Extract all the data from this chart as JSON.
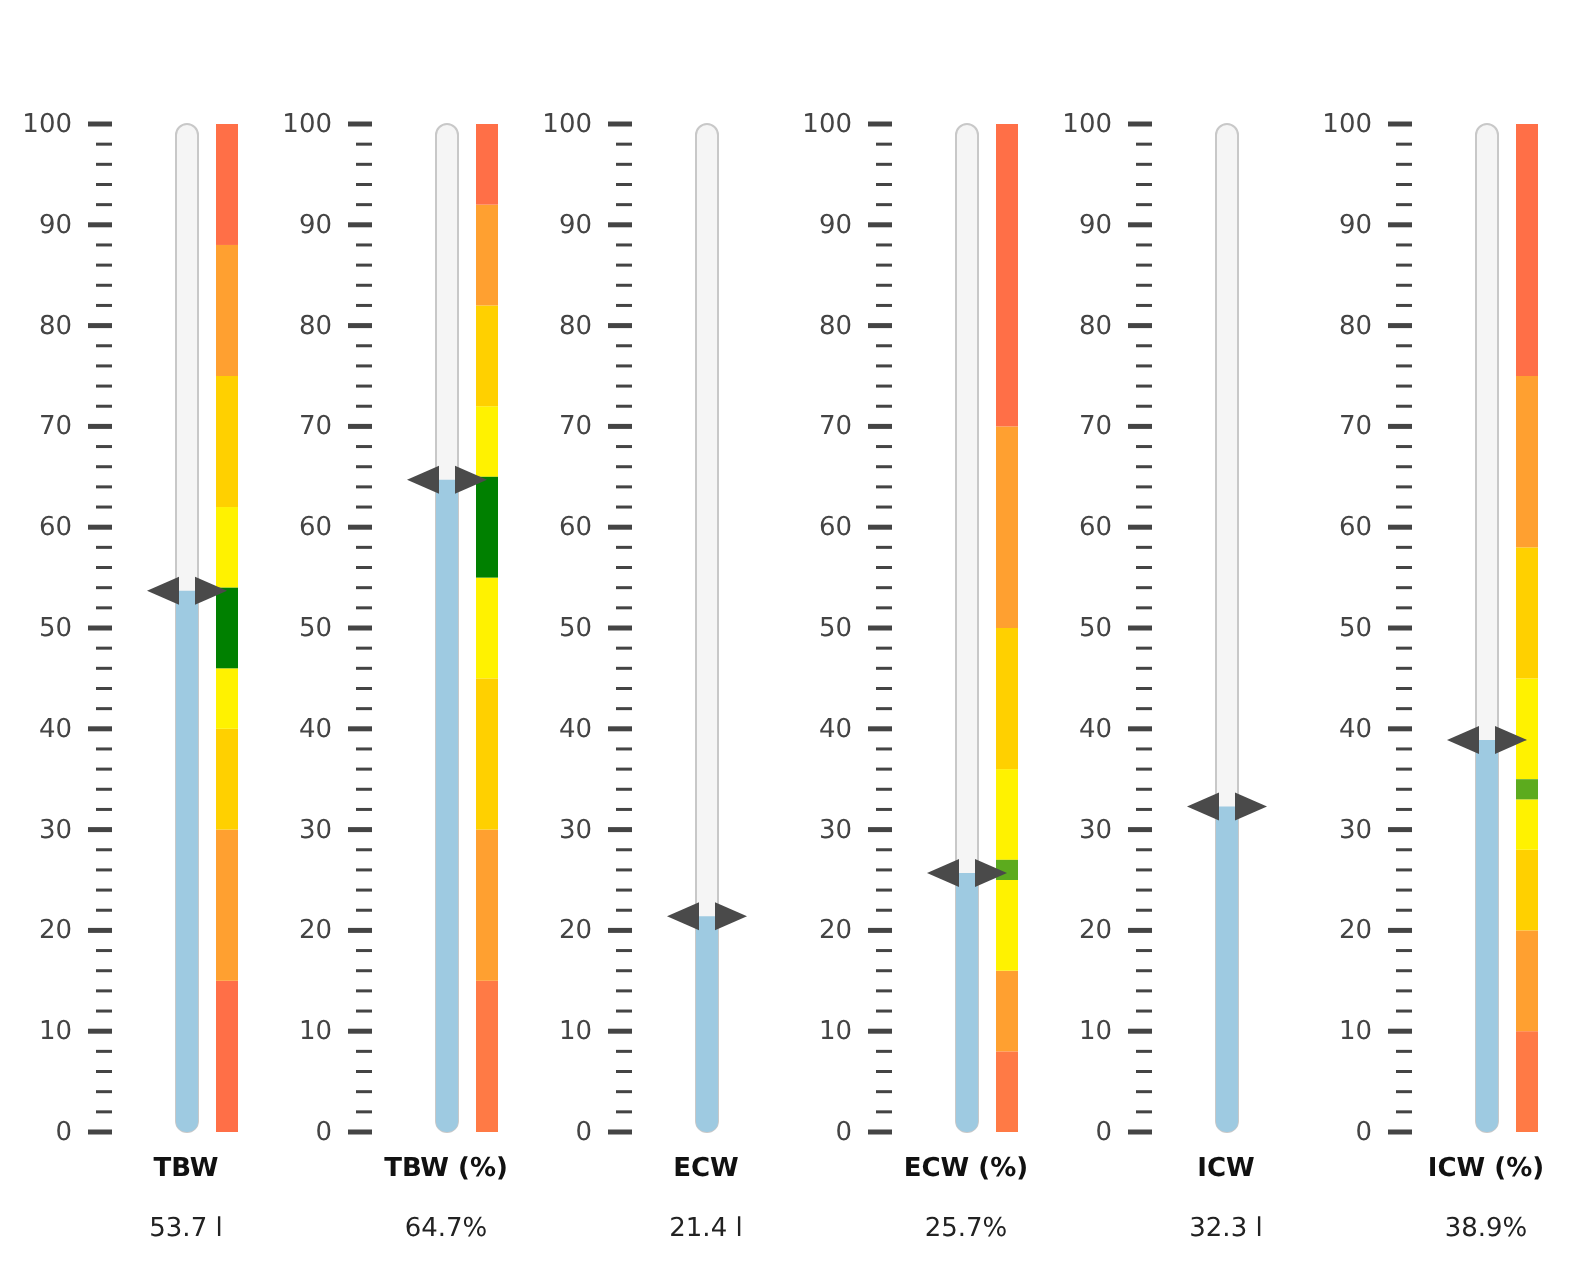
{
  "chart_data": [
    {
      "type": "bar",
      "categories": [
        "TBW"
      ],
      "values": [
        53.7
      ],
      "value_labels": [
        "53.7 l"
      ],
      "color": "#9ecae1",
      "ylim": [
        0,
        100
      ],
      "yticks": [
        0,
        {
          "value": 2,
          "label": null
        },
        {
          "value": 4,
          "label": null
        },
        {
          "value": 6,
          "label": null
        },
        {
          "value": 8,
          "label": null
        },
        10,
        {
          "value": 12,
          "label": null
        },
        {
          "value": 14,
          "label": null
        },
        {
          "value": 16,
          "label": null
        },
        {
          "value": 18,
          "label": null
        },
        20,
        {
          "value": 22,
          "label": null
        },
        {
          "value": 24,
          "label": null
        },
        {
          "value": 26,
          "label": null
        },
        {
          "value": 28,
          "label": null
        },
        30,
        {
          "value": 32,
          "label": null
        },
        {
          "value": 34,
          "label": null
        },
        {
          "value": 36,
          "label": null
        },
        {
          "value": 38,
          "label": null
        },
        40,
        {
          "value": 42,
          "label": null
        },
        {
          "value": 44,
          "label": null
        },
        {
          "value": 46,
          "label": null
        },
        {
          "value": 48,
          "label": null
        },
        50,
        {
          "value": 52,
          "label": null
        },
        {
          "value": 54,
          "label": null
        },
        {
          "value": 56,
          "label": null
        },
        {
          "value": 58,
          "label": null
        },
        60,
        {
          "value": 62,
          "label": null
        },
        {
          "value": 64,
          "label": null
        },
        {
          "value": 66,
          "label": null
        },
        {
          "value": 68,
          "label": null
        },
        70,
        {
          "value": 72,
          "label": null
        },
        {
          "value": 74,
          "label": null
        },
        {
          "value": 76,
          "label": null
        },
        {
          "value": 78,
          "label": null
        },
        80,
        {
          "value": 82,
          "label": null
        },
        {
          "value": 84,
          "label": null
        },
        {
          "value": 86,
          "label": null
        },
        {
          "value": 88,
          "label": null
        },
        90,
        {
          "value": 92,
          "label": null
        },
        {
          "value": 94,
          "label": null
        },
        {
          "value": 96,
          "label": null
        },
        {
          "value": 98,
          "label": null
        },
        100
      ],
      "bands": [
        {
          "axis": "y",
          "from": 0,
          "to": 15,
          "color": "#ff6f47"
        },
        {
          "axis": "y",
          "from": 15,
          "to": 30,
          "color": "#ffa030"
        },
        {
          "axis": "y",
          "from": 30,
          "to": 40,
          "color": "#ffd000"
        },
        {
          "axis": "y",
          "from": 40,
          "to": 46,
          "color": "#fff200"
        },
        {
          "axis": "y",
          "from": 54,
          "to": 62,
          "color": "#fff200"
        },
        {
          "axis": "y",
          "from": 62,
          "to": 75,
          "color": "#ffd000"
        },
        {
          "axis": "y",
          "from": 75,
          "to": 88,
          "color": "#ffa030"
        },
        {
          "axis": "y",
          "from": 88,
          "to": 100,
          "color": "#ff6f47"
        },
        {
          "axis": "y",
          "from": 46,
          "to": 54,
          "color": "#008000"
        }
      ]
    },
    {
      "type": "bar",
      "categories": [
        "TBW (%)"
      ],
      "values": [
        64.7
      ],
      "value_labels": [
        "64.7%"
      ],
      "color": "#9ecae1",
      "ylim": [
        0,
        100
      ],
      "yticks": [
        0,
        {
          "value": 2,
          "label": null
        },
        {
          "value": 4,
          "label": null
        },
        {
          "value": 6,
          "label": null
        },
        {
          "value": 8,
          "label": null
        },
        10,
        {
          "value": 12,
          "label": null
        },
        {
          "value": 14,
          "label": null
        },
        {
          "value": 16,
          "label": null
        },
        {
          "value": 18,
          "label": null
        },
        20,
        {
          "value": 22,
          "label": null
        },
        {
          "value": 24,
          "label": null
        },
        {
          "value": 26,
          "label": null
        },
        {
          "value": 28,
          "label": null
        },
        30,
        {
          "value": 32,
          "label": null
        },
        {
          "value": 34,
          "label": null
        },
        {
          "value": 36,
          "label": null
        },
        {
          "value": 38,
          "label": null
        },
        40,
        {
          "value": 42,
          "label": null
        },
        {
          "value": 44,
          "label": null
        },
        {
          "value": 46,
          "label": null
        },
        {
          "value": 48,
          "label": null
        },
        50,
        {
          "value": 52,
          "label": null
        },
        {
          "value": 54,
          "label": null
        },
        {
          "value": 56,
          "label": null
        },
        {
          "value": 58,
          "label": null
        },
        60,
        {
          "value": 62,
          "label": null
        },
        {
          "value": 64,
          "label": null
        },
        {
          "value": 66,
          "label": null
        },
        {
          "value": 68,
          "label": null
        },
        70,
        {
          "value": 72,
          "label": null
        },
        {
          "value": 74,
          "label": null
        },
        {
          "value": 76,
          "label": null
        },
        {
          "value": 78,
          "label": null
        },
        80,
        {
          "value": 82,
          "label": null
        },
        {
          "value": 84,
          "label": null
        },
        {
          "value": 86,
          "label": null
        },
        {
          "value": 88,
          "label": null
        },
        90,
        {
          "value": 92,
          "label": null
        },
        {
          "value": 94,
          "label": null
        },
        {
          "value": 96,
          "label": null
        },
        {
          "value": 98,
          "label": null
        },
        100
      ],
      "bands": [
        {
          "axis": "y",
          "from": 0,
          "to": 15,
          "color": "#ff7a45"
        },
        {
          "axis": "y",
          "from": 15,
          "to": 30,
          "color": "#ffa030"
        },
        {
          "axis": "y",
          "from": 30,
          "to": 45,
          "color": "#ffd000"
        },
        {
          "axis": "y",
          "from": 45,
          "to": 55,
          "color": "#fff200"
        },
        {
          "axis": "y",
          "from": 65,
          "to": 72,
          "color": "#fff200"
        },
        {
          "axis": "y",
          "from": 72,
          "to": 82,
          "color": "#ffd000"
        },
        {
          "axis": "y",
          "from": 82,
          "to": 92,
          "color": "#ffa030"
        },
        {
          "axis": "y",
          "from": 92,
          "to": 100,
          "color": "#ff6f47"
        },
        {
          "axis": "y",
          "from": 55,
          "to": 65,
          "color": "#008000"
        }
      ]
    },
    {
      "type": "bar",
      "categories": [
        "ECW"
      ],
      "values": [
        21.4
      ],
      "value_labels": [
        "21.4 l"
      ],
      "color": "#9ecae1",
      "ylim": [
        0,
        100
      ],
      "yticks": [
        0,
        {
          "value": 2,
          "label": null
        },
        {
          "value": 4,
          "label": null
        },
        {
          "value": 6,
          "label": null
        },
        {
          "value": 8,
          "label": null
        },
        10,
        {
          "value": 12,
          "label": null
        },
        {
          "value": 14,
          "label": null
        },
        {
          "value": 16,
          "label": null
        },
        {
          "value": 18,
          "label": null
        },
        20,
        {
          "value": 22,
          "label": null
        },
        {
          "value": 24,
          "label": null
        },
        {
          "value": 26,
          "label": null
        },
        {
          "value": 28,
          "label": null
        },
        30,
        {
          "value": 32,
          "label": null
        },
        {
          "value": 34,
          "label": null
        },
        {
          "value": 36,
          "label": null
        },
        {
          "value": 38,
          "label": null
        },
        40,
        {
          "value": 42,
          "label": null
        },
        {
          "value": 44,
          "label": null
        },
        {
          "value": 46,
          "label": null
        },
        {
          "value": 48,
          "label": null
        },
        50,
        {
          "value": 52,
          "label": null
        },
        {
          "value": 54,
          "label": null
        },
        {
          "value": 56,
          "label": null
        },
        {
          "value": 58,
          "label": null
        },
        60,
        {
          "value": 62,
          "label": null
        },
        {
          "value": 64,
          "label": null
        },
        {
          "value": 66,
          "label": null
        },
        {
          "value": 68,
          "label": null
        },
        70,
        {
          "value": 72,
          "label": null
        },
        {
          "value": 74,
          "label": null
        },
        {
          "value": 76,
          "label": null
        },
        {
          "value": 78,
          "label": null
        },
        80,
        {
          "value": 82,
          "label": null
        },
        {
          "value": 84,
          "label": null
        },
        {
          "value": 86,
          "label": null
        },
        {
          "value": 88,
          "label": null
        },
        90,
        {
          "value": 92,
          "label": null
        },
        {
          "value": 94,
          "label": null
        },
        {
          "value": 96,
          "label": null
        },
        {
          "value": 98,
          "label": null
        },
        100
      ]
    },
    {
      "type": "bar",
      "categories": [
        "ECW (%)"
      ],
      "values": [
        25.7
      ],
      "value_labels": [
        "25.7%"
      ],
      "color": "#9ecae1",
      "ylim": [
        0,
        100
      ],
      "yticks": [
        0,
        {
          "value": 2,
          "label": null
        },
        {
          "value": 4,
          "label": null
        },
        {
          "value": 6,
          "label": null
        },
        {
          "value": 8,
          "label": null
        },
        10,
        {
          "value": 12,
          "label": null
        },
        {
          "value": 14,
          "label": null
        },
        {
          "value": 16,
          "label": null
        },
        {
          "value": 18,
          "label": null
        },
        20,
        {
          "value": 22,
          "label": null
        },
        {
          "value": 24,
          "label": null
        },
        {
          "value": 26,
          "label": null
        },
        {
          "value": 28,
          "label": null
        },
        30,
        {
          "value": 32,
          "label": null
        },
        {
          "value": 34,
          "label": null
        },
        {
          "value": 36,
          "label": null
        },
        {
          "value": 38,
          "label": null
        },
        40,
        {
          "value": 42,
          "label": null
        },
        {
          "value": 44,
          "label": null
        },
        {
          "value": 46,
          "label": null
        },
        {
          "value": 48,
          "label": null
        },
        50,
        {
          "value": 52,
          "label": null
        },
        {
          "value": 54,
          "label": null
        },
        {
          "value": 56,
          "label": null
        },
        {
          "value": 58,
          "label": null
        },
        60,
        {
          "value": 62,
          "label": null
        },
        {
          "value": 64,
          "label": null
        },
        {
          "value": 66,
          "label": null
        },
        {
          "value": 68,
          "label": null
        },
        70,
        {
          "value": 72,
          "label": null
        },
        {
          "value": 74,
          "label": null
        },
        {
          "value": 76,
          "label": null
        },
        {
          "value": 78,
          "label": null
        },
        80,
        {
          "value": 82,
          "label": null
        },
        {
          "value": 84,
          "label": null
        },
        {
          "value": 86,
          "label": null
        },
        {
          "value": 88,
          "label": null
        },
        90,
        {
          "value": 92,
          "label": null
        },
        {
          "value": 94,
          "label": null
        },
        {
          "value": 96,
          "label": null
        },
        {
          "value": 98,
          "label": null
        },
        100
      ],
      "bands": [
        {
          "axis": "y",
          "from": 0,
          "to": 8,
          "color": "#ff7a45"
        },
        {
          "axis": "y",
          "from": 8,
          "to": 16,
          "color": "#ffa030"
        },
        {
          "axis": "y",
          "from": 16,
          "to": 25,
          "color": "#fff200"
        },
        {
          "axis": "y",
          "from": 27,
          "to": 36,
          "color": "#fff200"
        },
        {
          "axis": "y",
          "from": 36,
          "to": 50,
          "color": "#ffd000"
        },
        {
          "axis": "y",
          "from": 50,
          "to": 70,
          "color": "#ffa030"
        },
        {
          "axis": "y",
          "from": 70,
          "to": 100,
          "color": "#ff6f47"
        },
        {
          "axis": "y",
          "from": 25,
          "to": 27,
          "color": "#5cab1e"
        }
      ]
    },
    {
      "type": "bar",
      "categories": [
        "ICW"
      ],
      "values": [
        32.3
      ],
      "value_labels": [
        "32.3 l"
      ],
      "color": "#9ecae1",
      "ylim": [
        0,
        100
      ],
      "yticks": [
        0,
        {
          "value": 2,
          "label": null
        },
        {
          "value": 4,
          "label": null
        },
        {
          "value": 6,
          "label": null
        },
        {
          "value": 8,
          "label": null
        },
        10,
        {
          "value": 12,
          "label": null
        },
        {
          "value": 14,
          "label": null
        },
        {
          "value": 16,
          "label": null
        },
        {
          "value": 18,
          "label": null
        },
        20,
        {
          "value": 22,
          "label": null
        },
        {
          "value": 24,
          "label": null
        },
        {
          "value": 26,
          "label": null
        },
        {
          "value": 28,
          "label": null
        },
        30,
        {
          "value": 32,
          "label": null
        },
        {
          "value": 34,
          "label": null
        },
        {
          "value": 36,
          "label": null
        },
        {
          "value": 38,
          "label": null
        },
        40,
        {
          "value": 42,
          "label": null
        },
        {
          "value": 44,
          "label": null
        },
        {
          "value": 46,
          "label": null
        },
        {
          "value": 48,
          "label": null
        },
        50,
        {
          "value": 52,
          "label": null
        },
        {
          "value": 54,
          "label": null
        },
        {
          "value": 56,
          "label": null
        },
        {
          "value": 58,
          "label": null
        },
        60,
        {
          "value": 62,
          "label": null
        },
        {
          "value": 64,
          "label": null
        },
        {
          "value": 66,
          "label": null
        },
        {
          "value": 68,
          "label": null
        },
        70,
        {
          "value": 72,
          "label": null
        },
        {
          "value": 74,
          "label": null
        },
        {
          "value": 76,
          "label": null
        },
        {
          "value": 78,
          "label": null
        },
        80,
        {
          "value": 82,
          "label": null
        },
        {
          "value": 84,
          "label": null
        },
        {
          "value": 86,
          "label": null
        },
        {
          "value": 88,
          "label": null
        },
        90,
        {
          "value": 92,
          "label": null
        },
        {
          "value": 94,
          "label": null
        },
        {
          "value": 96,
          "label": null
        },
        {
          "value": 98,
          "label": null
        },
        100
      ]
    },
    {
      "type": "bar",
      "categories": [
        "ICW (%)"
      ],
      "values": [
        38.9
      ],
      "value_labels": [
        "38.9%"
      ],
      "color": "#9ecae1",
      "ylim": [
        0,
        100
      ],
      "yticks": [
        0,
        {
          "value": 2,
          "label": null
        },
        {
          "value": 4,
          "label": null
        },
        {
          "value": 6,
          "label": null
        },
        {
          "value": 8,
          "label": null
        },
        10,
        {
          "value": 12,
          "label": null
        },
        {
          "value": 14,
          "label": null
        },
        {
          "value": 16,
          "label": null
        },
        {
          "value": 18,
          "label": null
        },
        20,
        {
          "value": 22,
          "label": null
        },
        {
          "value": 24,
          "label": null
        },
        {
          "value": 26,
          "label": null
        },
        {
          "value": 28,
          "label": null
        },
        30,
        {
          "value": 32,
          "label": null
        },
        {
          "value": 34,
          "label": null
        },
        {
          "value": 36,
          "label": null
        },
        {
          "value": 38,
          "label": null
        },
        40,
        {
          "value": 42,
          "label": null
        },
        {
          "value": 44,
          "label": null
        },
        {
          "value": 46,
          "label": null
        },
        {
          "value": 48,
          "label": null
        },
        50,
        {
          "value": 52,
          "label": null
        },
        {
          "value": 54,
          "label": null
        },
        {
          "value": 56,
          "label": null
        },
        {
          "value": 58,
          "label": null
        },
        60,
        {
          "value": 62,
          "label": null
        },
        {
          "value": 64,
          "label": null
        },
        {
          "value": 66,
          "label": null
        },
        {
          "value": 68,
          "label": null
        },
        70,
        {
          "value": 72,
          "label": null
        },
        {
          "value": 74,
          "label": null
        },
        {
          "value": 76,
          "label": null
        },
        {
          "value": 78,
          "label": null
        },
        80,
        {
          "value": 82,
          "label": null
        },
        {
          "value": 84,
          "label": null
        },
        {
          "value": 86,
          "label": null
        },
        {
          "value": 88,
          "label": null
        },
        90,
        {
          "value": 92,
          "label": null
        },
        {
          "value": 94,
          "label": null
        },
        {
          "value": 96,
          "label": null
        },
        {
          "value": 98,
          "label": null
        },
        100
      ],
      "bands": [
        {
          "axis": "y",
          "from": 0,
          "to": 10,
          "color": "#ff7a45"
        },
        {
          "axis": "y",
          "from": 10,
          "to": 20,
          "color": "#ffa030"
        },
        {
          "axis": "y",
          "from": 20,
          "to": 28,
          "color": "#ffd000"
        },
        {
          "axis": "y",
          "from": 28,
          "to": 33,
          "color": "#fff200"
        },
        {
          "axis": "y",
          "from": 35,
          "to": 45,
          "color": "#fff200"
        },
        {
          "axis": "y",
          "from": 45,
          "to": 58,
          "color": "#ffd000"
        },
        {
          "axis": "y",
          "from": 58,
          "to": 75,
          "color": "#ffa030"
        },
        {
          "axis": "y",
          "from": 75,
          "to": 100,
          "color": "#ff6f47"
        },
        {
          "axis": "y",
          "from": 33,
          "to": 35,
          "color": "#5cab1e"
        }
      ]
    }
  ]
}
